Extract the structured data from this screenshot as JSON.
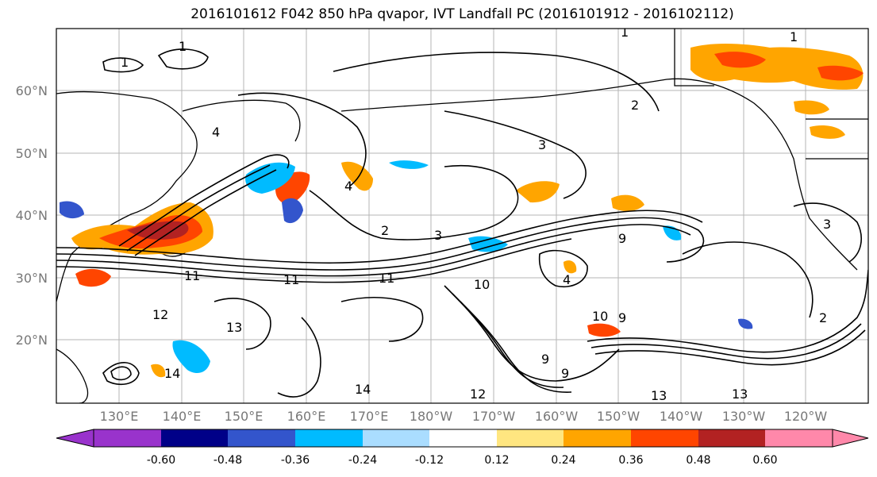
{
  "title": "2016101612 F042 850 hPa qvapor, IVT Landfall PC (2016101912 - 2016102112)",
  "map": {
    "lat_labels": [
      "60°N",
      "50°N",
      "40°N",
      "30°N",
      "20°N"
    ],
    "lon_labels": [
      "130°E",
      "140°E",
      "150°E",
      "160°E",
      "170°E",
      "180°W",
      "170°W",
      "160°W",
      "150°W",
      "140°W",
      "130°W",
      "120°W"
    ],
    "contour_labels": [
      "1",
      "1",
      "1",
      "1",
      "2",
      "3",
      "3",
      "4",
      "2",
      "11",
      "11",
      "11",
      "12",
      "13",
      "13",
      "14",
      "14",
      "10",
      "9",
      "9",
      "9",
      "4",
      "3",
      "2",
      "12",
      "13",
      "9",
      "10",
      "4"
    ]
  },
  "colorbar": {
    "tick_labels": [
      "-0.60",
      "-0.48",
      "-0.36",
      "-0.24",
      "-0.12",
      "0.12",
      "0.24",
      "0.36",
      "0.48",
      "0.60"
    ],
    "colors": [
      "#9933cc",
      "#000088",
      "#3355cc",
      "#00bbff",
      "#aaddff",
      "#ffffff",
      "#ffe680",
      "#ffa500",
      "#ff4500",
      "#b22222",
      "#ff88aa"
    ]
  }
}
